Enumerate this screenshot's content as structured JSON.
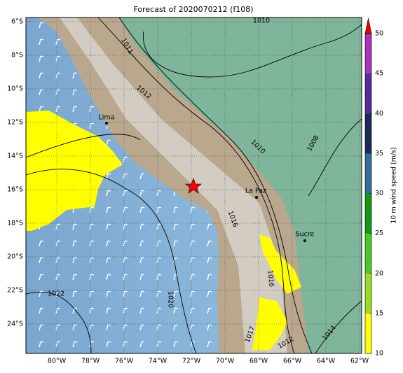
{
  "title": "Forecast of 2020070212 (f108)",
  "map": {
    "lat_labels": [
      "6°S",
      "8°S",
      "10°S",
      "12°S",
      "14°S",
      "16°S",
      "18°S",
      "20°S",
      "22°S",
      "24°S"
    ],
    "lon_labels": [
      "80°W",
      "78°W",
      "76°W",
      "74°W",
      "72°W",
      "70°W",
      "68°W",
      "66°W",
      "64°W",
      "62°W"
    ],
    "places": [
      "Lima",
      "La Paz",
      "Sucre"
    ],
    "contour_labels": [
      "1010",
      "1011",
      "1012",
      "1010",
      "1008",
      "1016",
      "1016",
      "1022",
      "1020",
      "1017",
      "1012",
      "1014"
    ]
  },
  "colorbar": {
    "label": "10 m wind speed (m/s)",
    "ticks": [
      10,
      15,
      20,
      25,
      30,
      35,
      40,
      45,
      50
    ],
    "colors": [
      "#ffff00",
      "#99dd22",
      "#44cc22",
      "#119911",
      "#336e99",
      "#1d2a55",
      "#5a2a99",
      "#aa33bb"
    ],
    "extend_color": "#ee0000"
  }
}
